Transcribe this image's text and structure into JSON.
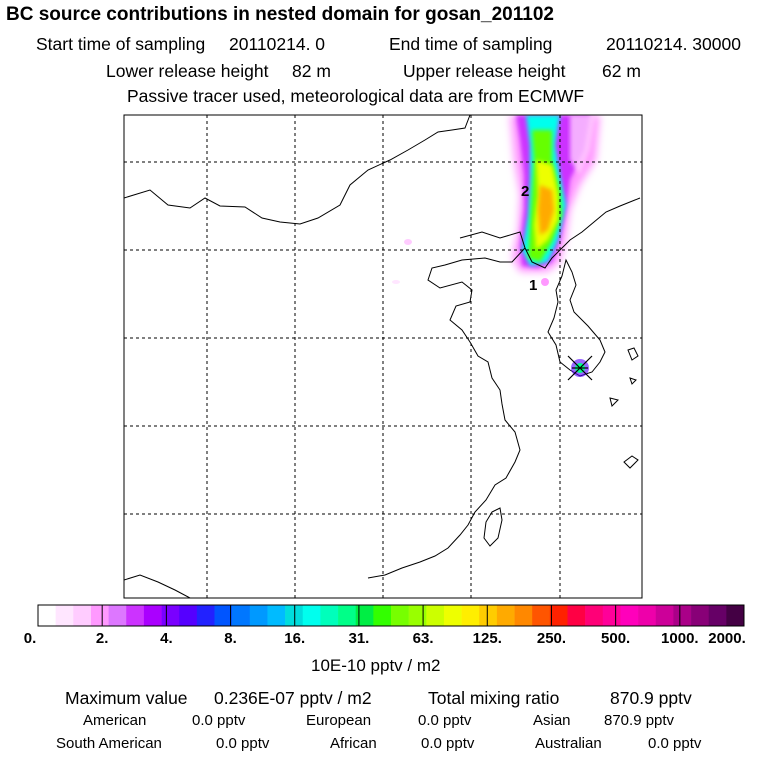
{
  "header": {
    "title": "BC  source contributions in nested domain for gosan_201102",
    "start_label": "Start time of sampling",
    "start_value": "20110214.     0",
    "end_label": "End time of sampling",
    "end_value": "20110214. 30000",
    "lower_label": "Lower release height",
    "lower_value": "82 m",
    "upper_label": "Upper release height",
    "upper_value": "62 m",
    "note": "Passive tracer used, meteorological data are from ECMWF"
  },
  "map": {
    "station": "gosan",
    "markers": [
      "1",
      "2"
    ],
    "plume_colors": [
      "#ff80ff",
      "#cc00ff",
      "#9933ff",
      "#00ffff",
      "#66ff00",
      "#ccff00",
      "#ffd700",
      "#ff9900"
    ]
  },
  "colorbar": {
    "colors": [
      "#ffffff",
      "#ffe6ff",
      "#ffccff",
      "#ff99ff",
      "#dd77ff",
      "#cc33ff",
      "#aa00ff",
      "#7a00ff",
      "#5500ff",
      "#2222ff",
      "#0055ff",
      "#0077ff",
      "#0099ff",
      "#00bbff",
      "#00dddd",
      "#00ffee",
      "#00ffbb",
      "#00ff88",
      "#00ee44",
      "#33ff00",
      "#77ff00",
      "#99ff00",
      "#ccff00",
      "#eeff00",
      "#ffee00",
      "#ffcc00",
      "#ffaa00",
      "#ff8800",
      "#ff5500",
      "#ff2200",
      "#ff0044",
      "#ff0077",
      "#ff0099",
      "#ff00bb",
      "#ee00aa",
      "#cc0099",
      "#aa0088",
      "#880077",
      "#660066",
      "#440044"
    ],
    "labels": [
      "0.",
      "2.",
      "4.",
      "8.",
      "16.",
      "31.",
      "63.",
      "125.",
      "250.",
      "500.",
      "1000.",
      "2000."
    ],
    "unit": "10E-10 pptv / m2"
  },
  "stats": {
    "max_label": "Maximum value",
    "max_value": "0.236E-07 pptv / m2",
    "total_label": "Total mixing ratio",
    "total_value": "870.9 pptv",
    "american_label": "American",
    "american_value": "0.0 pptv",
    "european_label": "European",
    "european_value": "0.0 pptv",
    "asian_label": "Asian",
    "asian_value": "870.9 pptv",
    "south_american_label": "South American",
    "south_american_value": "0.0 pptv",
    "african_label": "African",
    "african_value": "0.0 pptv",
    "australian_label": "Australian",
    "australian_value": "0.0 pptv"
  }
}
